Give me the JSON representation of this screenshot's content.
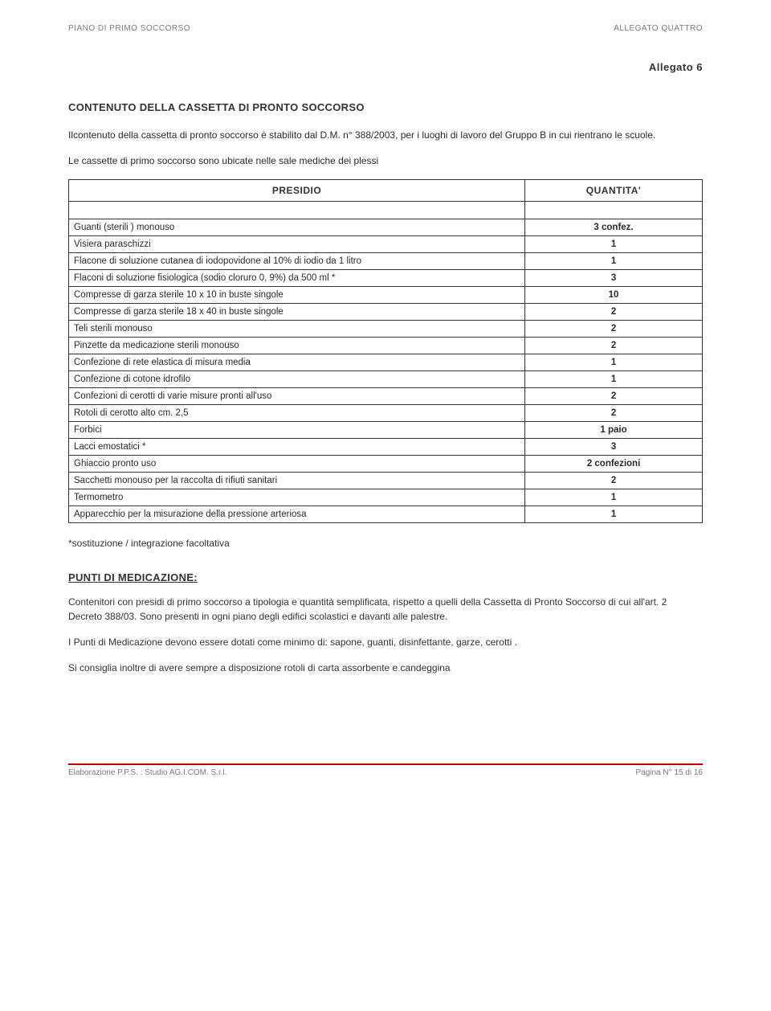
{
  "header": {
    "left": "PIANO DI PRIMO SOCCORSO",
    "right": "ALLEGATO QUATTRO"
  },
  "allegato_label": "Allegato 6",
  "title": "CONTENUTO DELLA CASSETTA DI PRONTO SOCCORSO",
  "intro1": "Ilcontenuto della cassetta di pronto soccorso è stabilito dal D.M. n° 388/2003, per i luoghi di lavoro del Gruppo B in cui rientrano le scuole.",
  "intro2": "Le cassette di primo soccorso sono ubicate nelle sale mediche dei plessi",
  "table": {
    "col1_header": "PRESIDIO",
    "col2_header": "QUANTITA'",
    "rows": [
      {
        "presidio": "Guanti (sterili ) monouso",
        "qty": "3 confez."
      },
      {
        "presidio": "Visiera paraschizzi",
        "qty": "1"
      },
      {
        "presidio": "Flacone di soluzione cutanea di iodopovidone al 10% di iodio da 1 litro",
        "qty": "1"
      },
      {
        "presidio": "Flaconi di soluzione fisiologica (sodio cloruro 0, 9%) da 500 ml *",
        "qty": "3"
      },
      {
        "presidio": "Compresse di garza sterile 10 x 10 in buste singole",
        "qty": "10"
      },
      {
        "presidio": "Compresse di garza sterile 18 x 40 in buste singole",
        "qty": "2"
      },
      {
        "presidio": "Teli sterili monouso",
        "qty": "2"
      },
      {
        "presidio": "Pinzette da medicazione sterili monouso",
        "qty": "2"
      },
      {
        "presidio": "Confezione di rete elastica di misura media",
        "qty": "1"
      },
      {
        "presidio": "Confezione di cotone idrofilo",
        "qty": "1"
      },
      {
        "presidio": "Confezioni di cerotti di varie misure pronti all'uso",
        "qty": "2"
      },
      {
        "presidio": "Rotoli di cerotto alto cm. 2,5",
        "qty": "2"
      },
      {
        "presidio": "Forbici",
        "qty": "1 paio"
      },
      {
        "presidio": "Lacci emostatici *",
        "qty": "3"
      },
      {
        "presidio": "Ghiaccio pronto uso",
        "qty": "2 confezioni"
      },
      {
        "presidio": "Sacchetti monouso per la raccolta di rifiuti sanitari",
        "qty": "2"
      },
      {
        "presidio": "Termometro",
        "qty": "1"
      },
      {
        "presidio": "Apparecchio per la misurazione della pressione arteriosa",
        "qty": "1"
      }
    ]
  },
  "footnote": "*sostituzione / integrazione facoltativa",
  "section_heading": "PUNTI DI MEDICAZIONE:",
  "para1": "Contenitori con presidi di primo soccorso a tipologia e quantità semplificata, rispetto a quelli della Cassetta di Pronto Soccorso di cui all'art. 2 Decreto 388/03.  Sono presenti in ogni piano degli edifici scolastici e davanti alle palestre.",
  "para2": "I Punti di Medicazione devono essere dotati come minimo di: sapone, guanti, disinfettante, garze, cerotti .",
  "para3": "Si consiglia inoltre di avere sempre a disposizione rotoli di carta assorbente e candeggina",
  "footer": {
    "left": "Elaborazione P.P.S. : Studio AG.I.COM. S.r.l.",
    "right": "Pagina N° 15 di 16"
  }
}
